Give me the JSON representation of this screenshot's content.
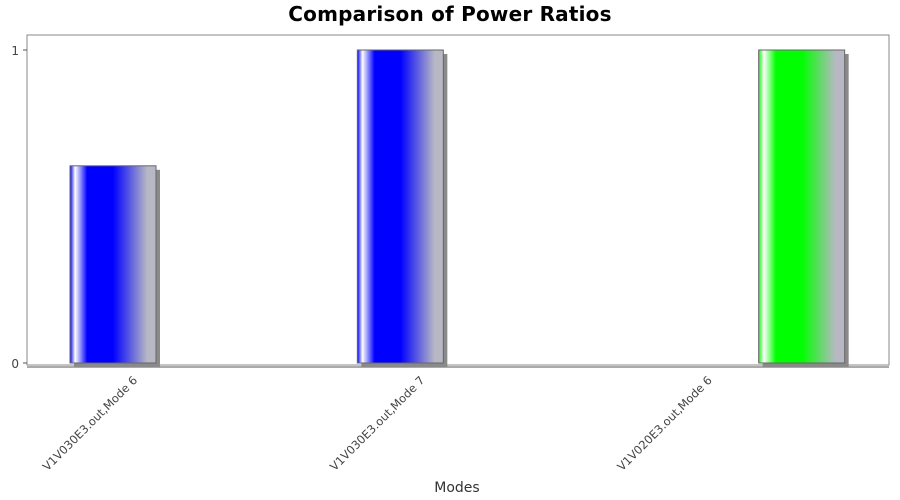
{
  "chart_data": {
    "type": "bar",
    "title": "Comparison of Power Ratios",
    "xlabel": "Modes",
    "ylabel": "",
    "ylim": [
      0,
      1
    ],
    "yticks": [
      0,
      1
    ],
    "categories": [
      "V1V030E3.out,Mode 6",
      "V1V030E3.out,Mode 7",
      "V1V020E3.out,Mode 6"
    ],
    "series": [
      {
        "values": [
          0.63,
          1.0,
          null
        ],
        "color": "#0000ff"
      },
      {
        "values": [
          null,
          null,
          1.0
        ],
        "color": "#00ff00"
      }
    ],
    "grid": false,
    "legend": "none"
  }
}
